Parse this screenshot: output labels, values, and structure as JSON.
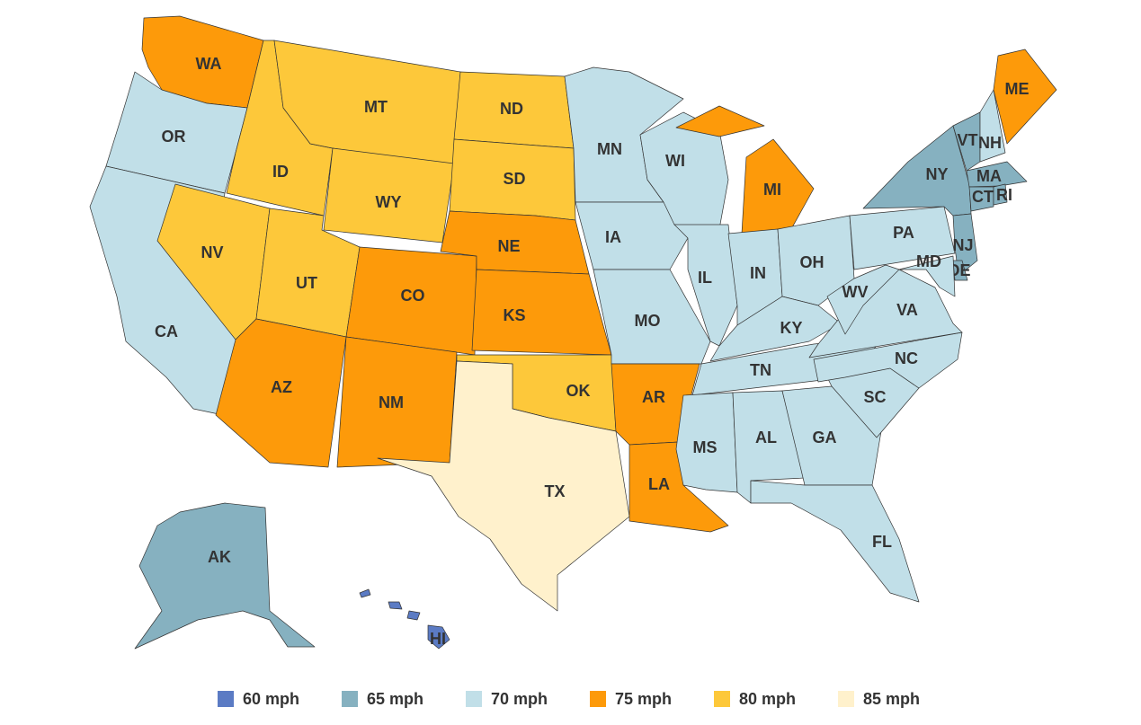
{
  "legend": [
    {
      "value": 60,
      "label": "60 mph",
      "color": "#5b7bc4"
    },
    {
      "value": 65,
      "label": "65 mph",
      "color": "#86b1c0"
    },
    {
      "value": 70,
      "label": "70 mph",
      "color": "#c1dfe8"
    },
    {
      "value": 75,
      "label": "75 mph",
      "color": "#fd9a0a"
    },
    {
      "value": 80,
      "label": "80 mph",
      "color": "#fdc83a"
    },
    {
      "value": 85,
      "label": "85 mph",
      "color": "#fff1cc"
    }
  ],
  "states": [
    {
      "label": "WA",
      "speed": 75
    },
    {
      "label": "OR",
      "speed": 70
    },
    {
      "label": "CA",
      "speed": 70
    },
    {
      "label": "NV",
      "speed": 80
    },
    {
      "label": "ID",
      "speed": 80
    },
    {
      "label": "MT",
      "speed": 80
    },
    {
      "label": "WY",
      "speed": 80
    },
    {
      "label": "UT",
      "speed": 80
    },
    {
      "label": "CO",
      "speed": 75
    },
    {
      "label": "AZ",
      "speed": 75
    },
    {
      "label": "NM",
      "speed": 75
    },
    {
      "label": "ND",
      "speed": 80
    },
    {
      "label": "SD",
      "speed": 80
    },
    {
      "label": "NE",
      "speed": 75
    },
    {
      "label": "KS",
      "speed": 75
    },
    {
      "label": "OK",
      "speed": 80
    },
    {
      "label": "TX",
      "speed": 85
    },
    {
      "label": "MN",
      "speed": 70
    },
    {
      "label": "IA",
      "speed": 70
    },
    {
      "label": "MO",
      "speed": 70
    },
    {
      "label": "AR",
      "speed": 75
    },
    {
      "label": "LA",
      "speed": 75
    },
    {
      "label": "WI",
      "speed": 70
    },
    {
      "label": "IL",
      "speed": 70
    },
    {
      "label": "MI",
      "speed": 75
    },
    {
      "label": "IN",
      "speed": 70
    },
    {
      "label": "OH",
      "speed": 70
    },
    {
      "label": "KY",
      "speed": 70
    },
    {
      "label": "TN",
      "speed": 70
    },
    {
      "label": "MS",
      "speed": 70
    },
    {
      "label": "AL",
      "speed": 70
    },
    {
      "label": "GA",
      "speed": 70
    },
    {
      "label": "FL",
      "speed": 70
    },
    {
      "label": "SC",
      "speed": 70
    },
    {
      "label": "NC",
      "speed": 70
    },
    {
      "label": "VA",
      "speed": 70
    },
    {
      "label": "WV",
      "speed": 70
    },
    {
      "label": "PA",
      "speed": 70
    },
    {
      "label": "NY",
      "speed": 65
    },
    {
      "label": "VT",
      "speed": 65
    },
    {
      "label": "NH",
      "speed": 70
    },
    {
      "label": "ME",
      "speed": 75
    },
    {
      "label": "MA",
      "speed": 65
    },
    {
      "label": "CT",
      "speed": 65
    },
    {
      "label": "RI",
      "speed": 65
    },
    {
      "label": "NJ",
      "speed": 65
    },
    {
      "label": "DE",
      "speed": 65
    },
    {
      "label": "MD",
      "speed": 70
    },
    {
      "label": "AK",
      "speed": 65
    },
    {
      "label": "HI",
      "speed": 60
    }
  ]
}
